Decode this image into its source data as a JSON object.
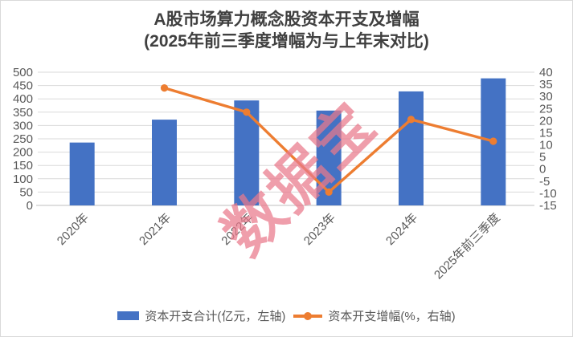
{
  "title": {
    "line1": "A股市场算力概念股资本开支及增幅",
    "line2": "(2025年前三季度增幅为与上年末对比)",
    "color": "#404040"
  },
  "watermark": {
    "text": "数据宝",
    "color": "#EA798C",
    "opacity": 0.72
  },
  "legend": {
    "position": "bottom",
    "items": [
      {
        "label": "资本开支合计(亿元，左轴)",
        "marker": "bar-swatch",
        "color": "#4472C4"
      },
      {
        "label": "资本开支增幅(%，右轴)",
        "marker": "line-dot-swatch",
        "color": "#ED7D31"
      }
    ]
  },
  "chart_data": {
    "type": "combo-bar-line",
    "title": "A股市场算力概念股资本开支及增幅(2025年前三季度增幅为与上年末对比)",
    "categories": [
      "2020年",
      "2021年",
      "2022年",
      "2023年",
      "2024年",
      "2025年前三季度"
    ],
    "series": [
      {
        "name": "资本开支合计(亿元，左轴)",
        "chart": "bar",
        "axis": "left",
        "color": "#4472C4",
        "values": [
          236,
          322,
          394,
          356,
          428,
          477
        ]
      },
      {
        "name": "资本开支增幅(%，右轴)",
        "chart": "line",
        "axis": "right",
        "color": "#ED7D31",
        "values": [
          null,
          33.5,
          23.5,
          -9.5,
          20.5,
          11.5
        ]
      }
    ],
    "left_axis": {
      "min": 0,
      "max": 500,
      "step": 50,
      "tick_labels": [
        "500",
        "450",
        "400",
        "350",
        "300",
        "250",
        "200",
        "150",
        "100",
        "50",
        "0"
      ]
    },
    "right_axis": {
      "min": -15,
      "max": 40,
      "step": 5,
      "tick_labels": [
        "40",
        "35",
        "30",
        "25",
        "20",
        "15",
        "10",
        "5",
        "0",
        "-5",
        "-10",
        "-15"
      ]
    },
    "grid": {
      "show": true,
      "color": "#D9D9D9",
      "axis_line_color": "#BFBFBF",
      "tick_text_color": "#595959"
    },
    "legend_position": "bottom",
    "x_label_rotation_deg": -45
  }
}
